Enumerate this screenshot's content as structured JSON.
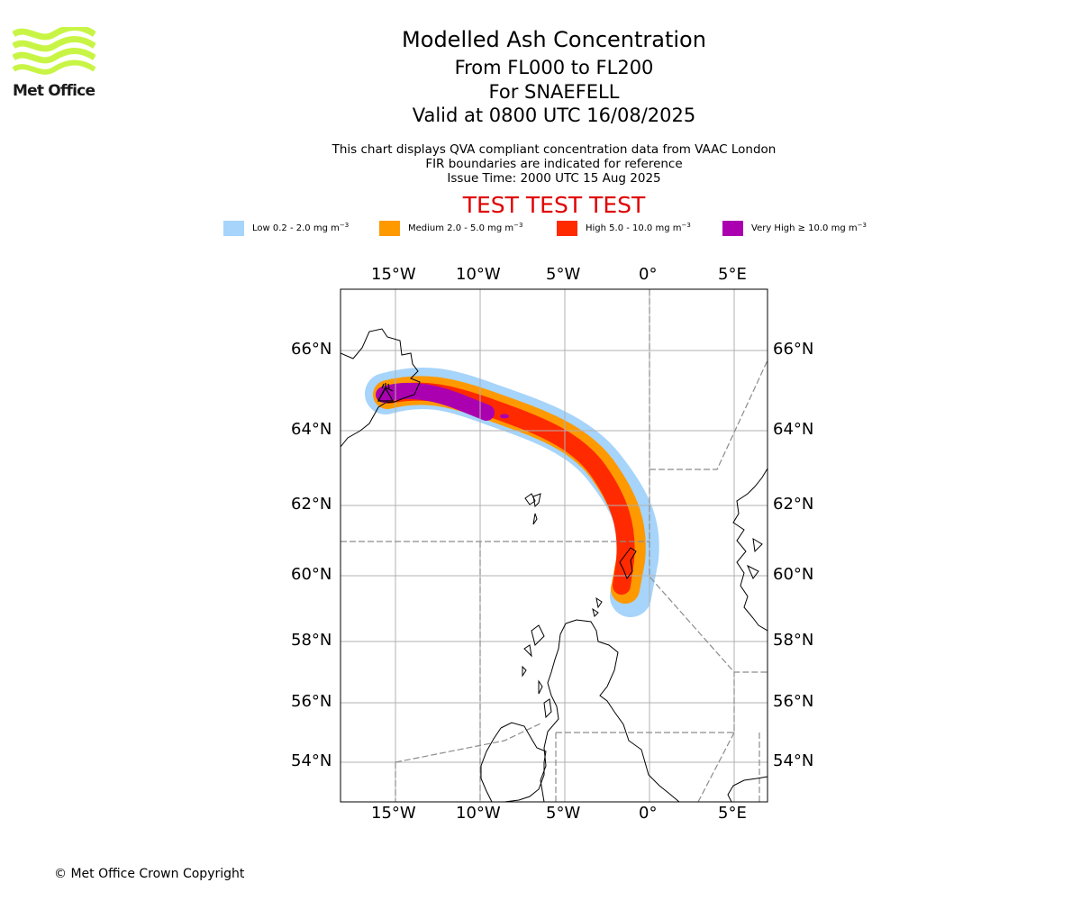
{
  "header": {
    "logo_text": "Met Office",
    "title": "Modelled Ash Concentration",
    "level_range": "From FL000 to FL200",
    "volcano": "For SNAEFELL",
    "valid_time": "Valid at 0800 UTC 16/08/2025",
    "subtitle_lines": [
      "This chart displays QVA compliant concentration data from VAAC London",
      "FIR boundaries are indicated for reference",
      "Issue Time: 2000 UTC 15 Aug 2025"
    ],
    "test_banner": "TEST TEST TEST"
  },
  "legend": [
    {
      "label": "Low 0.2 - 2.0 mg m",
      "exp": "−3",
      "color": "#a6d4fa"
    },
    {
      "label": "Medium 2.0 - 5.0 mg m",
      "exp": "−3",
      "color": "#ff9900"
    },
    {
      "label": "High 5.0 - 10.0 mg m",
      "exp": "−3",
      "color": "#ff2a00"
    },
    {
      "label": "Very High  ≥  10.0 mg m",
      "exp": "−3",
      "color": "#aa00b0"
    }
  ],
  "map": {
    "lon_labels": [
      "15°W",
      "10°W",
      "5°W",
      "0°",
      "5°E"
    ],
    "lat_labels": [
      "66°N",
      "64°N",
      "62°N",
      "60°N",
      "58°N",
      "56°N",
      "54°N"
    ],
    "volcano_icon": "volcano-icon",
    "colors": {
      "low": "#a6d4fa",
      "medium": "#ff9900",
      "high": "#ff2a00",
      "very_high": "#aa00b0",
      "grid": "#b0b0b0",
      "fir": "#8c8c8c"
    }
  },
  "footer": {
    "copyright": "© Met Office Crown Copyright"
  }
}
